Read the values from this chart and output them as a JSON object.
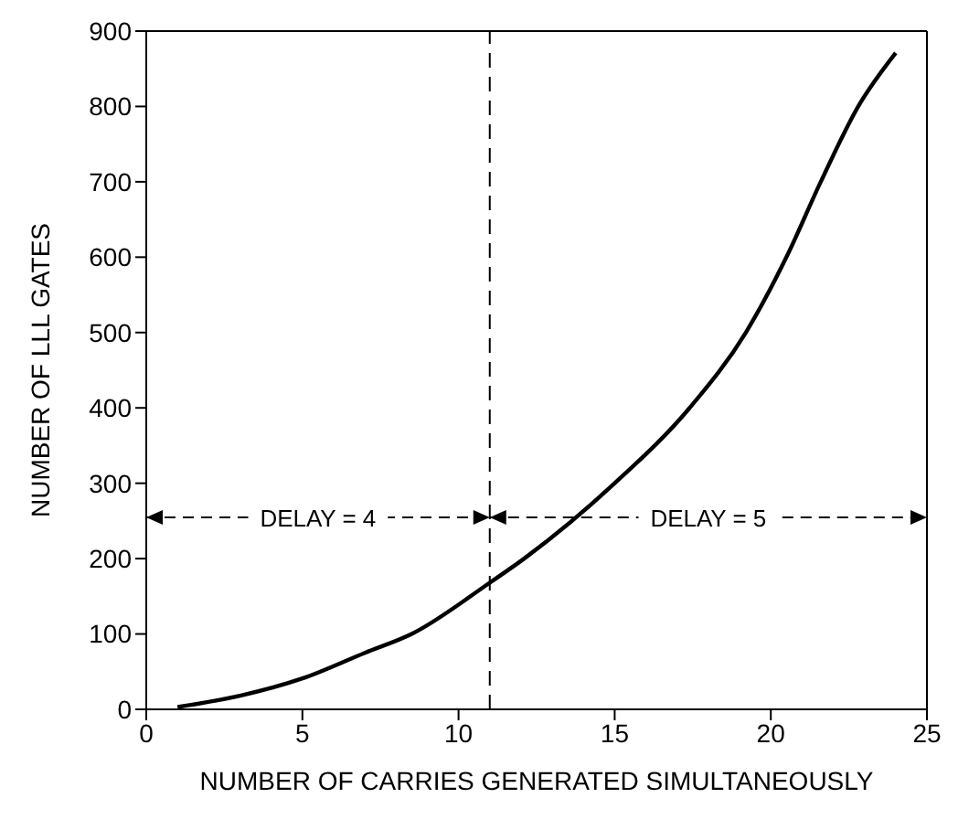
{
  "chart_data": {
    "type": "line",
    "xlabel": "NUMBER OF CARRIES GENERATED SIMULTANEOUSLY",
    "ylabel": "NUMBER OF LLL GATES",
    "x": [
      1,
      3,
      5,
      7,
      8.5,
      11,
      12.1,
      15,
      17.4,
      19.2,
      20.5,
      21.6,
      22.8,
      24
    ],
    "series": [
      {
        "color": "#000000",
        "values": [
          3,
          18,
          41,
          75,
          100,
          168,
          200,
          300,
          400,
          500,
          600,
          700,
          800,
          871
        ]
      }
    ],
    "xlim": [
      0,
      25
    ],
    "xticks": [
      0,
      5,
      10,
      15,
      20,
      25
    ],
    "ylim": [
      0,
      900
    ],
    "yticks": [
      0,
      100,
      200,
      300,
      400,
      500,
      600,
      700,
      800,
      900
    ],
    "ref_lines": [
      {
        "axis": "x",
        "value": 11,
        "line_style": "dashed",
        "color": "#000000"
      }
    ],
    "annotations": [
      "DELAY = 4",
      "DELAY = 5"
    ],
    "grid": false,
    "marker": "none",
    "line_style": "solid"
  }
}
